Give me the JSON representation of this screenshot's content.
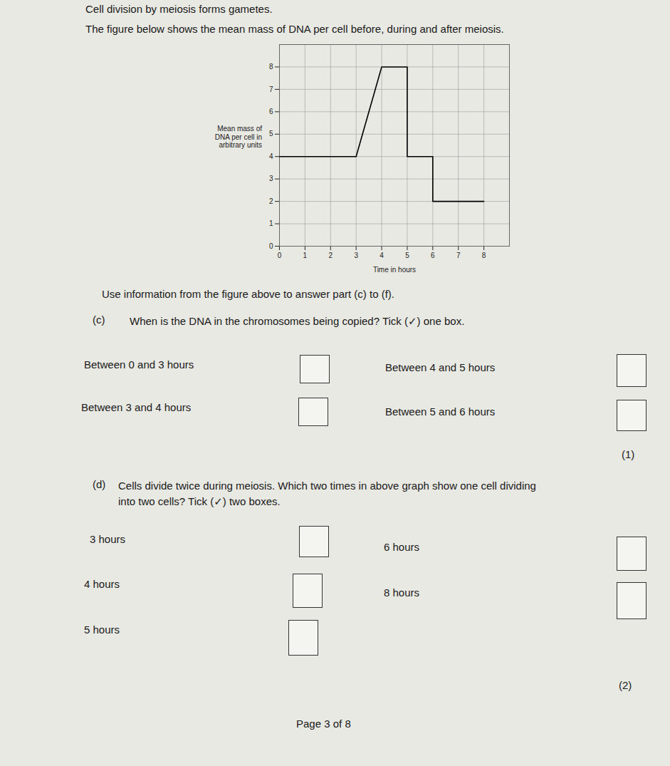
{
  "header": {
    "title": "Cell division by meiosis forms gametes.",
    "intro": "The figure below shows the mean mass of DNA per cell before, during and after meiosis."
  },
  "chart_data": {
    "type": "line",
    "x_label": "Time in hours",
    "y_label": "Mean mass of\nDNA per cell in\narbitrary units",
    "x": [
      0,
      3,
      4,
      5,
      5,
      6,
      6,
      8
    ],
    "values": [
      4,
      4,
      8,
      8,
      4,
      4,
      2,
      2
    ],
    "color": "#000000",
    "xlim": [
      0,
      9
    ],
    "xticks": [
      0,
      1,
      2,
      3,
      4,
      5,
      6,
      7,
      8
    ],
    "ylim": [
      0,
      9
    ],
    "yticks": [
      0,
      1,
      2,
      3,
      4,
      5,
      6,
      7,
      8
    ],
    "grid": true
  },
  "instruction": "Use information from the figure above to answer part (c) to (f).",
  "questions": [
    {
      "label": "(c)",
      "text": "When is the DNA in the chromosomes being copied? Tick (✓) one box.",
      "options": [
        "Between 0 and 3 hours",
        "Between 4 and 5 hours",
        "Between 3 and 4 hours",
        "Between 5 and 6 hours"
      ],
      "marks": "(1)"
    },
    {
      "label": "(d)",
      "text": "Cells divide twice during meiosis. Which two times in above graph show one cell dividing\ninto two cells? Tick (✓) two boxes.",
      "options": [
        "3 hours",
        "6 hours",
        "4 hours",
        "8 hours",
        "5 hours"
      ],
      "marks": "(2)"
    }
  ],
  "footer": "Page 3 of 8"
}
